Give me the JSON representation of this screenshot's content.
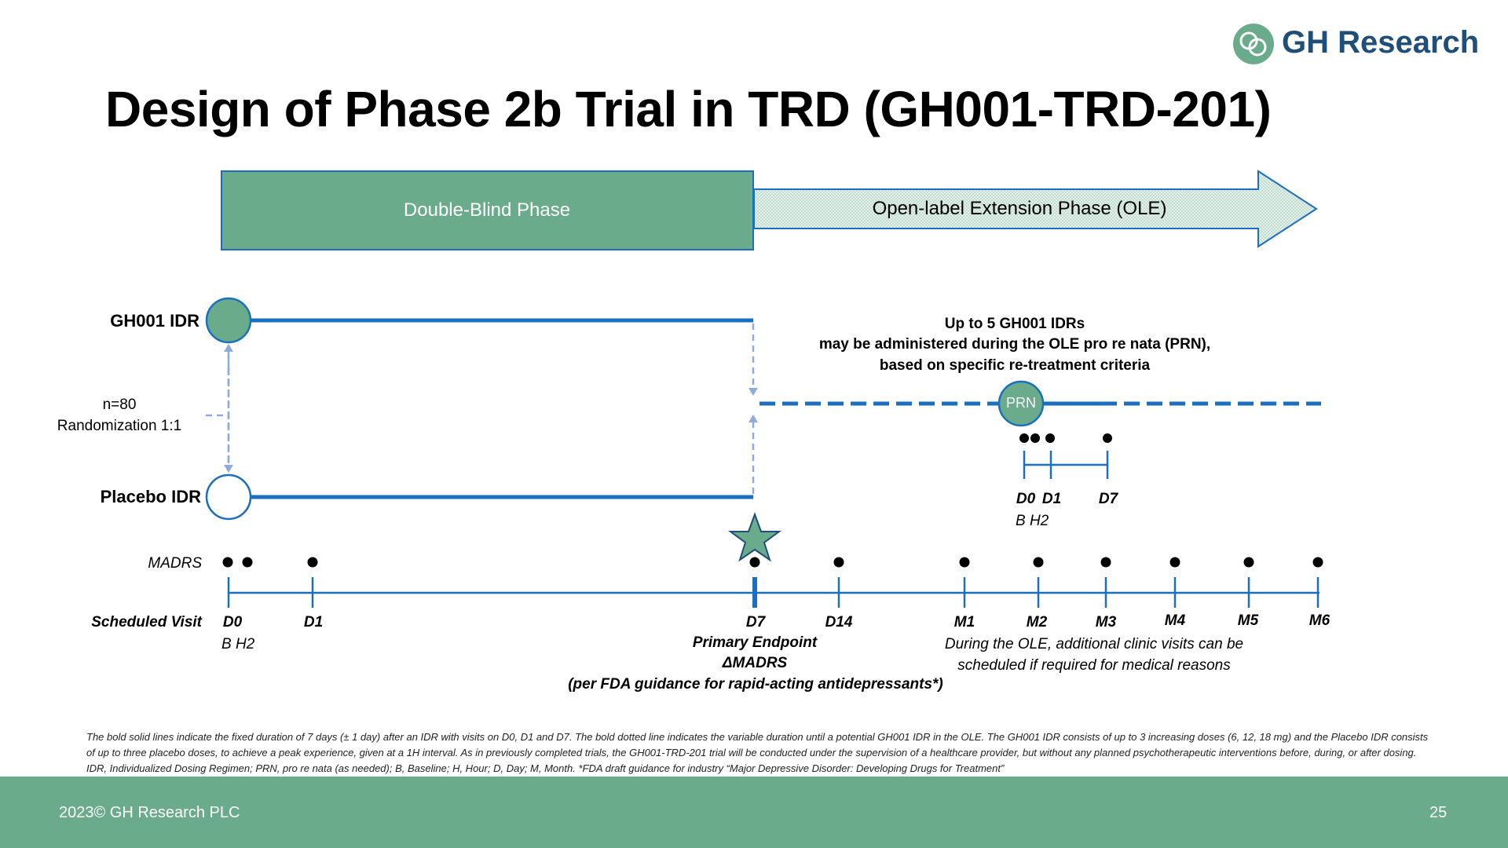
{
  "brand": {
    "name": "GH Research",
    "logo_icon": "gh-research-logo-icon",
    "color": "#1f4e79",
    "accent": "#6aab8c"
  },
  "title": "Design of Phase 2b Trial in TRD (GH001-TRD-201)",
  "phases": {
    "double_blind": "Double-Blind Phase",
    "ole": "Open-label Extension Phase (OLE)"
  },
  "arms": {
    "gh001": "GH001 IDR",
    "placebo": "Placebo IDR",
    "n": "n=80",
    "randomization": "Randomization 1:1"
  },
  "ole_note": {
    "line1": "Up to 5 GH001 IDRs",
    "line2": "may be administered during the OLE pro re nata (PRN),",
    "line3": "based on specific re-treatment criteria"
  },
  "prn_label": "PRN",
  "prn_visits": {
    "d0": "D0",
    "d1": "D1",
    "d7": "D7",
    "sub": "B H2"
  },
  "madrs_label": "MADRS",
  "scheduled_visit_label": "Scheduled Visit",
  "visits": [
    "D0",
    "D1",
    "D7",
    "D14",
    "M1",
    "M2",
    "M3",
    "M4",
    "M5",
    "M6"
  ],
  "d0_sub": "B H2",
  "primary_endpoint": {
    "line1": "Primary Endpoint",
    "line2": "ΔMADRS",
    "line3": "(per FDA guidance for rapid-acting antidepressants*)"
  },
  "ole_visits_note": {
    "line1": "During the OLE, additional clinic visits can be",
    "line2": "scheduled if required for medical reasons"
  },
  "footnote": "The bold solid lines indicate the fixed duration of 7 days (± 1 day) after an IDR with visits on D0, D1 and D7. The bold dotted line indicates the variable duration until a potential GH001 IDR in the OLE. The GH001 IDR consists of up to 3 increasing doses (6, 12, 18 mg) and the Placebo IDR consists of up to three placebo doses, to achieve a peak experience, given at a 1H interval. As in previously completed trials, the GH001-TRD-201 trial will be conducted under the supervision of a healthcare provider, but without any planned psychotherapeutic interventions before, during, or after dosing. IDR, Individualized Dosing Regimen; PRN, pro re nata (as needed); B, Baseline; H, Hour; D, Day; M, Month. *FDA draft guidance for industry “Major Depressive Disorder: Developing Drugs for Treatment”",
  "footer": {
    "copyright": "2023© GH Research PLC",
    "page": "25"
  },
  "colors": {
    "line_blue": "#1a6fc0",
    "green": "#6aab8c",
    "dashed_light": "#8faadc"
  }
}
